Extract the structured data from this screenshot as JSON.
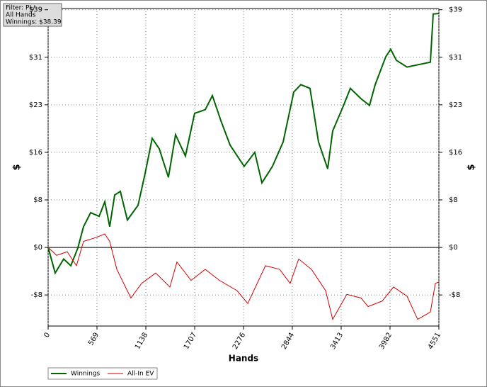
{
  "chart_data": {
    "type": "line",
    "info_box": [
      "Filter: PL/",
      "All Hands",
      "Winnings: $38.39"
    ],
    "x_label": "Hands",
    "y_label": "$",
    "y2_label": "$",
    "x": [
      0,
      82,
      181,
      264,
      346,
      412,
      495,
      594,
      660,
      717,
      775,
      841,
      923,
      1047,
      1129,
      1212,
      1294,
      1401,
      1484,
      1599,
      1706,
      1830,
      1913,
      2012,
      2119,
      2283,
      2407,
      2490,
      2613,
      2737,
      2861,
      2943,
      3050,
      3149,
      3256,
      3314,
      3438,
      3520,
      3644,
      3743,
      3809,
      3933,
      3990,
      4056,
      4180,
      4452,
      4485,
      4551
    ],
    "series": [
      {
        "name": "Winnings",
        "color": "#006400",
        "values": [
          0,
          -4.2,
          -1.9,
          -3,
          -0.1,
          3.4,
          5.7,
          5.1,
          7.5,
          3.4,
          8.6,
          9.2,
          4.5,
          6.9,
          12.1,
          17.9,
          16.2,
          11.5,
          18.5,
          15,
          22,
          22.6,
          24.9,
          20.8,
          16.8,
          13.3,
          15.6,
          10.6,
          13.3,
          17.3,
          25.5,
          26.7,
          26.1,
          17.3,
          12.9,
          19.1,
          23.2,
          26.1,
          24.4,
          23.3,
          26.7,
          31.3,
          32.5,
          30.7,
          29.6,
          30.4,
          38.3,
          38.39
        ]
      },
      {
        "name": "All-In EV",
        "color": "#d00000",
        "x": [
          0,
          99,
          222,
          330,
          412,
          552,
          660,
          717,
          800,
          964,
          1088,
          1253,
          1418,
          1500,
          1665,
          1830,
          1995,
          2201,
          2325,
          2531,
          2696,
          2819,
          2918,
          3067,
          3232,
          3314,
          3479,
          3644,
          3727,
          3891,
          4023,
          4180,
          4304,
          4452,
          4510,
          4551
        ],
        "values": [
          0,
          -1.3,
          -0.7,
          -3,
          1,
          1.6,
          2.2,
          1,
          -3.6,
          -8.3,
          -5.9,
          -4.2,
          -6.5,
          -2.4,
          -5.4,
          -3.6,
          -5.4,
          -7.1,
          -9.2,
          -3,
          -3.6,
          -5.9,
          -1.9,
          -3.6,
          -7.1,
          -11.8,
          -7.7,
          -8.3,
          -9.7,
          -8.8,
          -6.5,
          -8,
          -11.8,
          -10.6,
          -5.9,
          -5.7
        ]
      }
    ],
    "xlim": [
      0,
      4551
    ],
    "xticks": [
      0,
      569,
      1138,
      1707,
      2276,
      2844,
      3413,
      3982,
      4551
    ],
    "ylim": [
      -12.9,
      39.2
    ],
    "yticks": [
      {
        "value": -7.8,
        "label": "-$8"
      },
      {
        "value": 0,
        "label": "$0"
      },
      {
        "value": 7.8,
        "label": "$8"
      },
      {
        "value": 15.6,
        "label": "$16"
      },
      {
        "value": 23.4,
        "label": "$23"
      },
      {
        "value": 31.2,
        "label": "$31"
      },
      {
        "value": 39,
        "label": "$39"
      }
    ],
    "grid": true,
    "zero_line": true
  }
}
